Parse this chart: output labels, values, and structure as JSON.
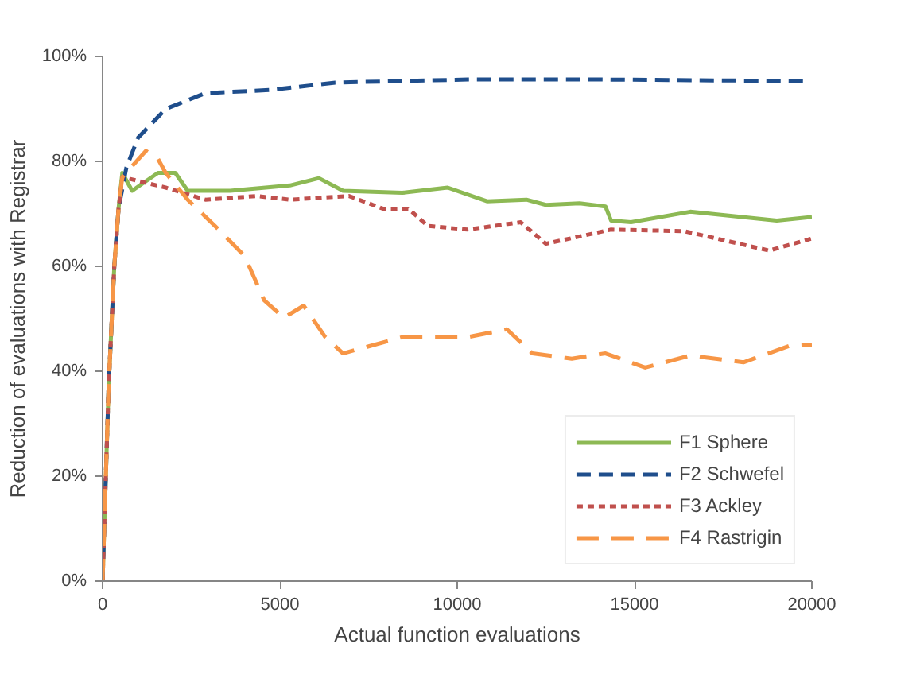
{
  "chart_data": {
    "type": "line",
    "xlabel": "Actual function evaluations",
    "ylabel": "Reduction of evaluations with Registrar",
    "xlim": [
      0,
      20000
    ],
    "xticks": [
      0,
      5000,
      10000,
      15000,
      20000
    ],
    "ylim": [
      0,
      100
    ],
    "yticks": [
      {
        "value": 0,
        "label": "0%"
      },
      {
        "value": 20,
        "label": "20%"
      },
      {
        "value": 40,
        "label": "40%"
      },
      {
        "value": 60,
        "label": "60%"
      },
      {
        "value": 80,
        "label": "80%"
      },
      {
        "value": 100,
        "label": "100%"
      }
    ],
    "grid": false,
    "legend": "bottom right",
    "marker": "none",
    "series": [
      {
        "name": "F1 Sphere",
        "color": "#8db954",
        "line_style": "solid",
        "x": [
          0,
          170,
          330,
          450,
          556,
          833,
          1560,
          2050,
          2400,
          3600,
          5280,
          6100,
          6780,
          8450,
          9730,
          10840,
          11950,
          12500,
          13450,
          14180,
          14340,
          14900,
          16570,
          19010,
          20000
        ],
        "values": [
          0,
          37,
          60,
          71,
          77.8,
          74.4,
          77.8,
          77.8,
          74.4,
          74.4,
          75.4,
          76.8,
          74.4,
          74,
          75,
          72.4,
          72.7,
          71.7,
          72,
          71.4,
          68.7,
          68.4,
          70.4,
          68.7,
          69.4
        ]
      },
      {
        "name": "F2 Schwefel",
        "color": "#1f4e8c",
        "line_style": "dashed",
        "x": [
          0,
          170,
          330,
          450,
          670,
          1000,
          1780,
          2900,
          4730,
          6560,
          10300,
          14000,
          19900
        ],
        "values": [
          0,
          37,
          60,
          71,
          78.8,
          84.5,
          90,
          93,
          93.6,
          95,
          95.6,
          95.6,
          95.3
        ]
      },
      {
        "name": "F3 Ackley",
        "color": "#c0504d",
        "line_style": "dotted",
        "x": [
          0,
          170,
          330,
          450,
          556,
          1780,
          2900,
          4340,
          5280,
          6950,
          7900,
          8620,
          9170,
          10290,
          11790,
          12500,
          14340,
          16400,
          17500,
          18800,
          20000
        ],
        "values": [
          0,
          37,
          60,
          71,
          77,
          75,
          72.7,
          73.4,
          72.7,
          73.4,
          71,
          71,
          67.7,
          67,
          68.4,
          64.3,
          67,
          66.7,
          65,
          63,
          65.3
        ]
      },
      {
        "name": "F4 Rastrigin",
        "color": "#f79646",
        "line_style": "dashed",
        "x": [
          0,
          170,
          330,
          450,
          556,
          1220,
          1560,
          1780,
          2400,
          3170,
          4000,
          4560,
          5110,
          5670,
          6280,
          6780,
          8450,
          10300,
          11400,
          12120,
          13230,
          14180,
          15300,
          16570,
          18070,
          19350,
          20000
        ],
        "values": [
          0,
          37,
          60,
          71,
          77,
          82,
          80.5,
          77.8,
          72.7,
          67.7,
          62,
          53.5,
          50.2,
          52.5,
          46.5,
          43.4,
          46.5,
          46.5,
          48,
          43.4,
          42.4,
          43.4,
          40.7,
          43,
          41.7,
          44.8,
          45
        ]
      }
    ]
  }
}
